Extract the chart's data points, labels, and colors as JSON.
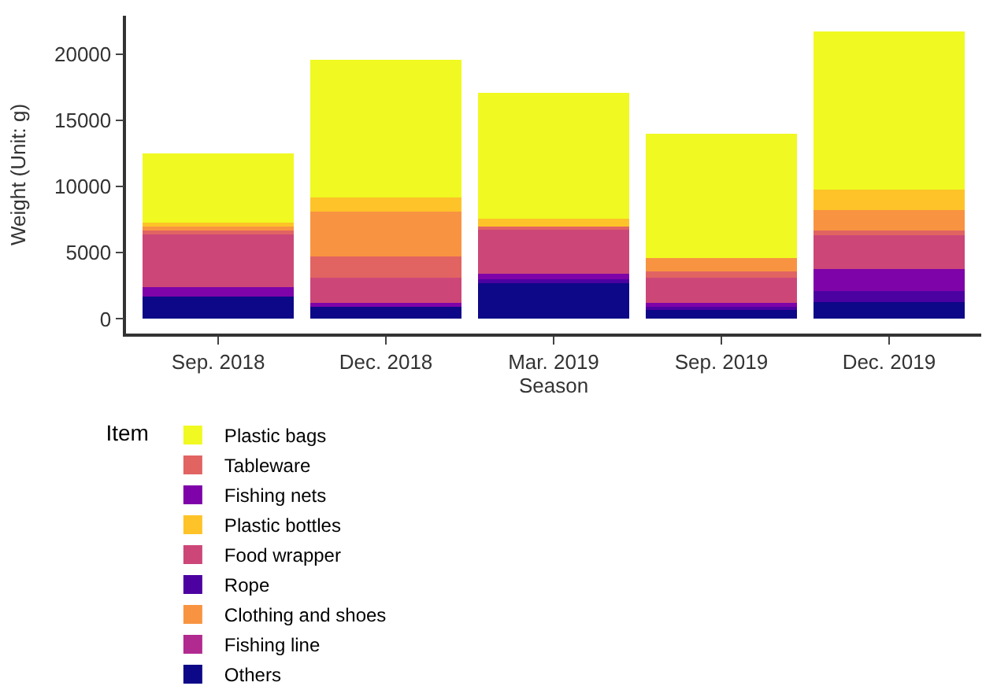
{
  "chart_data": {
    "type": "bar",
    "stacked": true,
    "xlabel": "Season",
    "ylabel": "Weight (Unit: g)",
    "legend_title": "Item",
    "legend": "bottom",
    "categories": [
      "Sep. 2018",
      "Dec. 2018",
      "Mar. 2019",
      "Sep. 2019",
      "Dec. 2019"
    ],
    "ylim": [
      -1100,
      22900
    ],
    "yticks": [
      0,
      5000,
      10000,
      15000,
      20000
    ],
    "series": [
      {
        "name": "Others",
        "color": "#0d0887",
        "values": [
          1700,
          900,
          2700,
          700,
          1300
        ]
      },
      {
        "name": "Rope",
        "color": "#4c02a1",
        "values": [
          0,
          0,
          300,
          300,
          800
        ]
      },
      {
        "name": "Fishing nets",
        "color": "#7e03a8",
        "values": [
          700,
          300,
          400,
          200,
          1700
        ]
      },
      {
        "name": "Fishing line",
        "color": "#b12a90",
        "values": [
          0,
          0,
          0,
          0,
          0
        ]
      },
      {
        "name": "Food wrapper",
        "color": "#cc4778",
        "values": [
          4100,
          1900,
          3400,
          1900,
          2500
        ]
      },
      {
        "name": "Tableware",
        "color": "#e16462",
        "values": [
          200,
          1600,
          200,
          500,
          400
        ]
      },
      {
        "name": "Clothing and shoes",
        "color": "#f89441",
        "values": [
          300,
          3400,
          0,
          1000,
          1500
        ]
      },
      {
        "name": "Plastic bottles",
        "color": "#fdc328",
        "values": [
          300,
          1100,
          600,
          0,
          1600
        ]
      },
      {
        "name": "Plastic bags",
        "color": "#f0f921",
        "values": [
          5200,
          10400,
          9500,
          9400,
          11900
        ]
      }
    ]
  }
}
